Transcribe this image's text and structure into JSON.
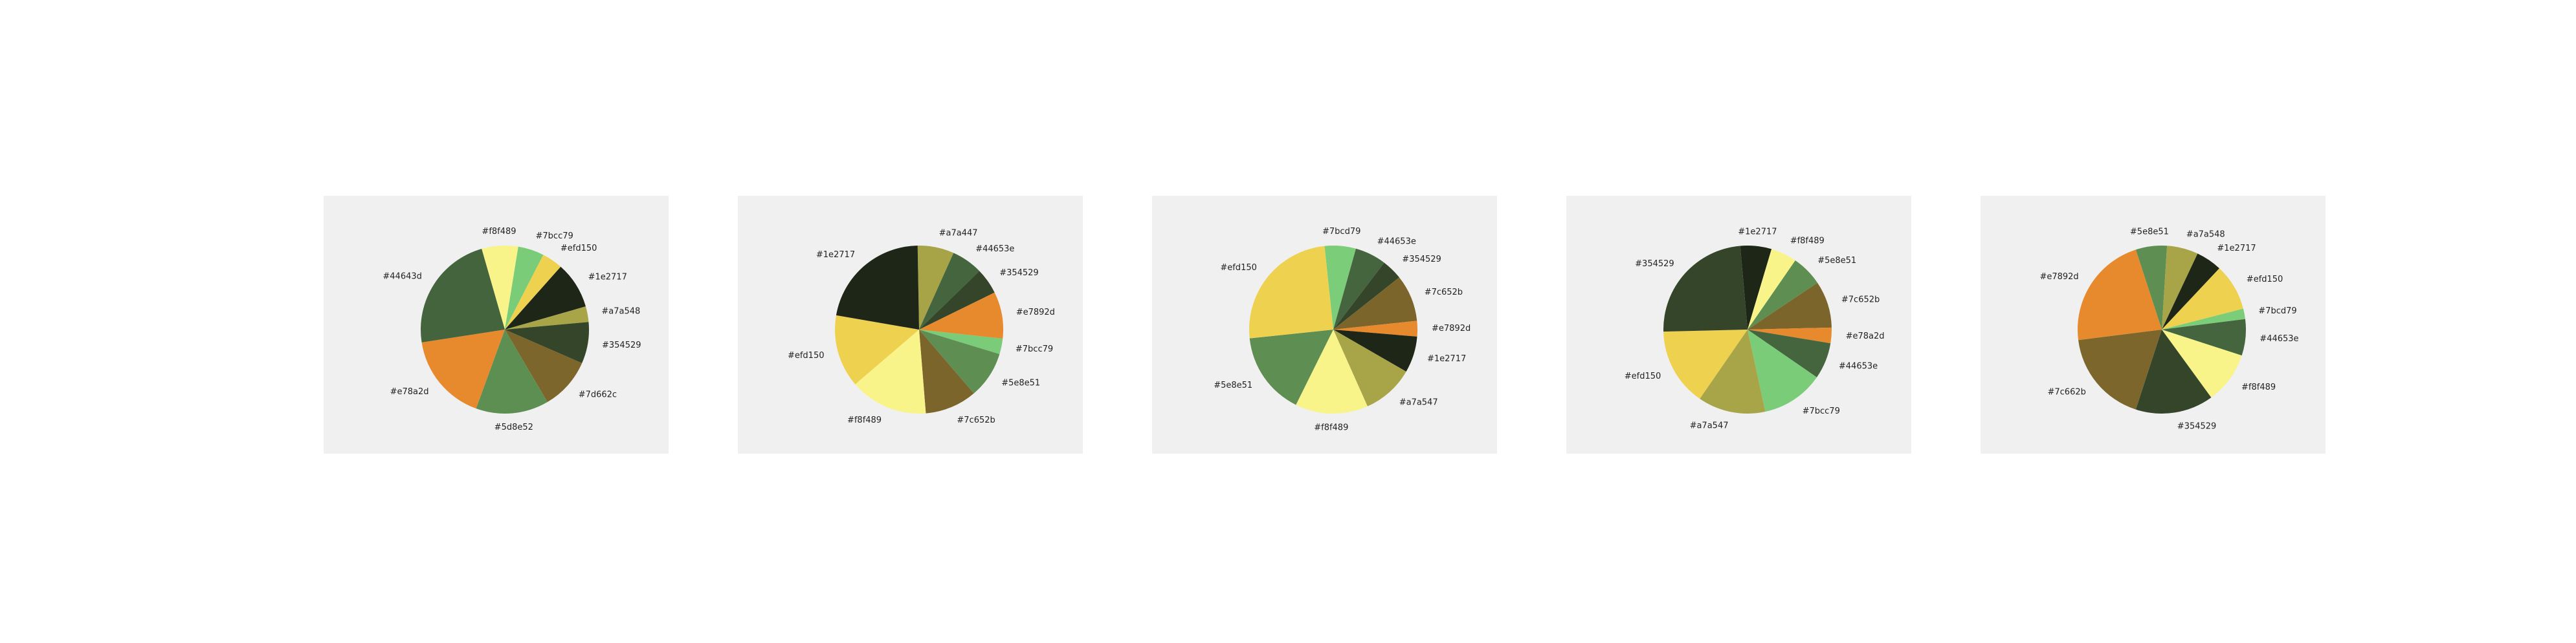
{
  "chart_data": [
    {
      "type": "pie",
      "start_angle_deg": 106,
      "direction": "clockwise",
      "slices": [
        {
          "label": "#f8f489",
          "color": "#f8f489",
          "value": 7
        },
        {
          "label": "#7bcc79",
          "color": "#7bcc79",
          "value": 5
        },
        {
          "label": "#efd150",
          "color": "#efd150",
          "value": 4
        },
        {
          "label": "#1e2717",
          "color": "#1e2717",
          "value": 9
        },
        {
          "label": "#a7a548",
          "color": "#a7a548",
          "value": 3
        },
        {
          "label": "#354529",
          "color": "#354529",
          "value": 8
        },
        {
          "label": "#7d662c",
          "color": "#7d662c",
          "value": 10
        },
        {
          "label": "#5d8e52",
          "color": "#5d8e52",
          "value": 14
        },
        {
          "label": "#e78a2d",
          "color": "#e78a2d",
          "value": 17
        },
        {
          "label": "#44643d",
          "color": "#44643d",
          "value": 23
        }
      ]
    },
    {
      "type": "pie",
      "start_angle_deg": 91,
      "direction": "clockwise",
      "slices": [
        {
          "label": "#a7a447",
          "color": "#a7a447",
          "value": 7
        },
        {
          "label": "#44653e",
          "color": "#44653e",
          "value": 6
        },
        {
          "label": "#354529",
          "color": "#354529",
          "value": 5
        },
        {
          "label": "#e7892d",
          "color": "#e7892d",
          "value": 9
        },
        {
          "label": "#7bcc79",
          "color": "#7bcc79",
          "value": 3
        },
        {
          "label": "#5e8e51",
          "color": "#5e8e51",
          "value": 9
        },
        {
          "label": "#7c652b",
          "color": "#7c652b",
          "value": 10
        },
        {
          "label": "#f8f489",
          "color": "#f8f489",
          "value": 15
        },
        {
          "label": "#efd150",
          "color": "#efd150",
          "value": 14
        },
        {
          "label": "#1e2717",
          "color": "#1e2717",
          "value": 22
        }
      ]
    },
    {
      "type": "pie",
      "start_angle_deg": 96,
      "direction": "clockwise",
      "slices": [
        {
          "label": "#7bcd79",
          "color": "#7bcd79",
          "value": 6
        },
        {
          "label": "#44653e",
          "color": "#44653e",
          "value": 6
        },
        {
          "label": "#354529",
          "color": "#354529",
          "value": 4
        },
        {
          "label": "#7c652b",
          "color": "#7c652b",
          "value": 9
        },
        {
          "label": "#e7892d",
          "color": "#e7892d",
          "value": 3
        },
        {
          "label": "#1e2717",
          "color": "#1e2717",
          "value": 7
        },
        {
          "label": "#a7a547",
          "color": "#a7a547",
          "value": 10
        },
        {
          "label": "#f8f489",
          "color": "#f8f489",
          "value": 14
        },
        {
          "label": "#5e8e51",
          "color": "#5e8e51",
          "value": 16
        },
        {
          "label": "#efd150",
          "color": "#efd150",
          "value": 25
        }
      ]
    },
    {
      "type": "pie",
      "start_angle_deg": 95,
      "direction": "clockwise",
      "slices": [
        {
          "label": "#1e2717",
          "color": "#1e2717",
          "value": 6
        },
        {
          "label": "#f8f489",
          "color": "#f8f489",
          "value": 5
        },
        {
          "label": "#5e8e51",
          "color": "#5e8e51",
          "value": 6
        },
        {
          "label": "#7c652b",
          "color": "#7c652b",
          "value": 9
        },
        {
          "label": "#e78a2d",
          "color": "#e78a2d",
          "value": 3
        },
        {
          "label": "#44653e",
          "color": "#44653e",
          "value": 7
        },
        {
          "label": "#7bcc79",
          "color": "#7bcc79",
          "value": 12
        },
        {
          "label": "#a7a547",
          "color": "#a7a547",
          "value": 13
        },
        {
          "label": "#efd150",
          "color": "#efd150",
          "value": 15
        },
        {
          "label": "#354529",
          "color": "#354529",
          "value": 24
        }
      ]
    },
    {
      "type": "pie",
      "start_angle_deg": 108,
      "direction": "clockwise",
      "slices": [
        {
          "label": "#5e8e51",
          "color": "#5e8e51",
          "value": 6
        },
        {
          "label": "#a7a548",
          "color": "#a7a548",
          "value": 6
        },
        {
          "label": "#1e2717",
          "color": "#1e2717",
          "value": 5
        },
        {
          "label": "#efd150",
          "color": "#efd150",
          "value": 9
        },
        {
          "label": "#7bcd79",
          "color": "#7bcd79",
          "value": 2
        },
        {
          "label": "#44653e",
          "color": "#44653e",
          "value": 7
        },
        {
          "label": "#f8f489",
          "color": "#f8f489",
          "value": 10
        },
        {
          "label": "#354529",
          "color": "#354529",
          "value": 15
        },
        {
          "label": "#7c662b",
          "color": "#7c662b",
          "value": 18
        },
        {
          "label": "#e7892d",
          "color": "#e7892d",
          "value": 22
        }
      ]
    }
  ]
}
